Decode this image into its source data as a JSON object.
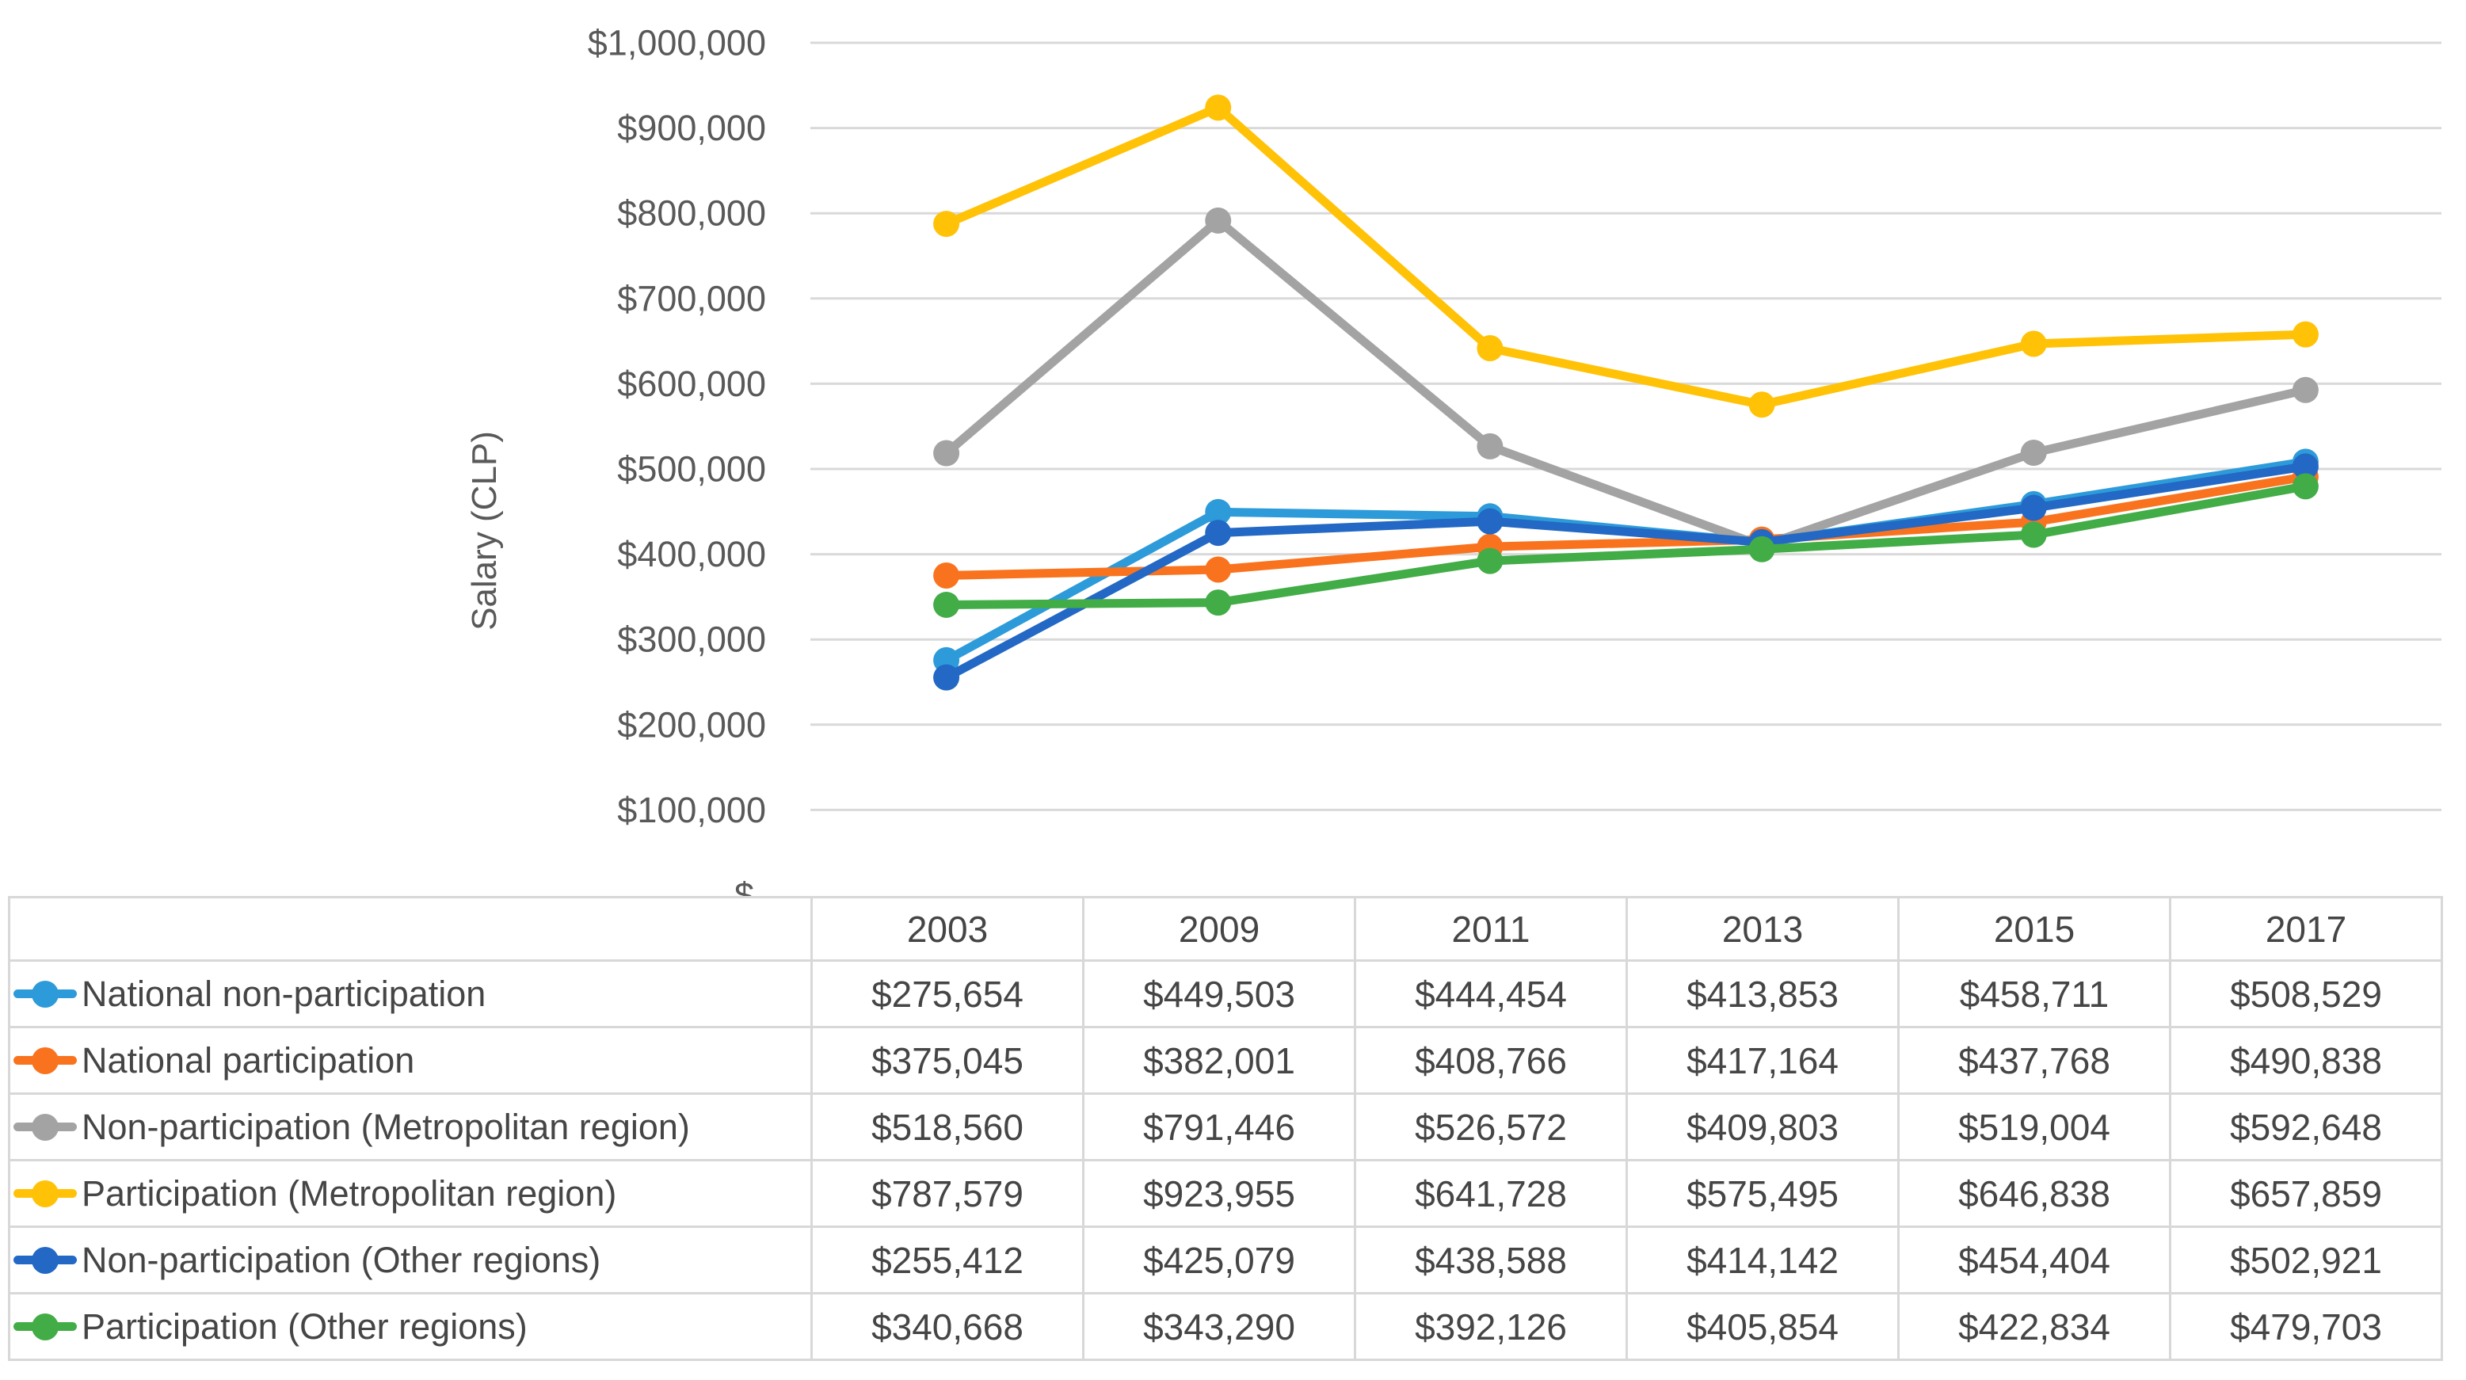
{
  "chart_data": {
    "type": "line",
    "title": "",
    "xlabel": "",
    "ylabel": "Salary (CLP)",
    "categories": [
      "2003",
      "2009",
      "2011",
      "2013",
      "2015",
      "2017"
    ],
    "y_axis": {
      "min": 0,
      "max": 1000000,
      "step": 100000,
      "tick_labels": [
        "$-",
        "$100,000",
        "$200,000",
        "$300,000",
        "$400,000",
        "$500,000",
        "$600,000",
        "$700,000",
        "$800,000",
        "$900,000",
        "$1,000,000"
      ]
    },
    "grid": true,
    "legend_position": "data-table-left",
    "gridline_color": "#D9D9D9",
    "axis_text_color": "#595959",
    "table_text_color": "#454545",
    "series": [
      {
        "name": "National non-participation",
        "color": "#2D9BD9",
        "values": [
          275654,
          449503,
          444454,
          413853,
          458711,
          508529
        ],
        "formatted": [
          "$275,654",
          "$449,503",
          "$444,454",
          "$413,853",
          "$458,711",
          "$508,529"
        ]
      },
      {
        "name": "National participation",
        "color": "#F9731F",
        "values": [
          375045,
          382001,
          408766,
          417164,
          437768,
          490838
        ],
        "formatted": [
          "$375,045",
          "$382,001",
          "$408,766",
          "$417,164",
          "$437,768",
          "$490,838"
        ]
      },
      {
        "name": "Non-participation (Metropolitan region)",
        "color": "#A3A3A3",
        "values": [
          518560,
          791446,
          526572,
          409803,
          519004,
          592648
        ],
        "formatted": [
          "$518,560",
          "$791,446",
          "$526,572",
          "$409,803",
          "$519,004",
          "$592,648"
        ]
      },
      {
        "name": "Participation (Metropolitan region)",
        "color": "#FFC207",
        "values": [
          787579,
          923955,
          641728,
          575495,
          646838,
          657859
        ],
        "formatted": [
          "$787,579",
          "$923,955",
          "$641,728",
          "$575,495",
          "$646,838",
          "$657,859"
        ]
      },
      {
        "name": "Non-participation (Other regions)",
        "color": "#2268C4",
        "values": [
          255412,
          425079,
          438588,
          414142,
          454404,
          502921
        ],
        "formatted": [
          "$255,412",
          "$425,079",
          "$438,588",
          "$414,142",
          "$454,404",
          "$502,921"
        ]
      },
      {
        "name": "Participation (Other regions)",
        "color": "#42AC47",
        "values": [
          340668,
          343290,
          392126,
          405854,
          422834,
          479703
        ],
        "formatted": [
          "$340,668",
          "$343,290",
          "$392,126",
          "$405,854",
          "$422,834",
          "$479,703"
        ]
      }
    ]
  }
}
